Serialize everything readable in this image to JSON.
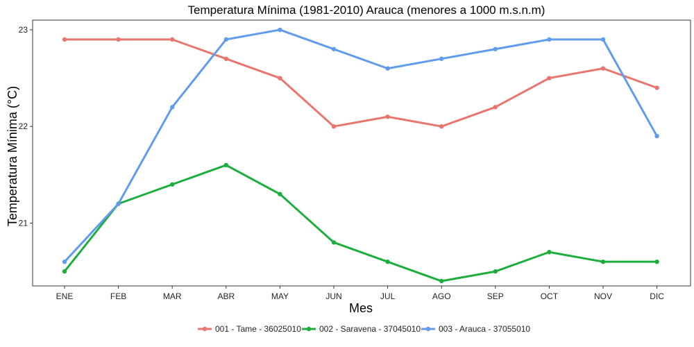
{
  "chart_data": {
    "type": "line",
    "title": "Temperatura Mínima (1981-2010) Arauca (menores a 1000 m.s.n.m)",
    "xlabel": "Mes",
    "ylabel": "Temperatura Mínima (°C)",
    "categories": [
      "ENE",
      "FEB",
      "MAR",
      "ABR",
      "MAY",
      "JUN",
      "JUL",
      "AGO",
      "SEP",
      "OCT",
      "NOV",
      "DIC"
    ],
    "ylim": [
      20.35,
      23.1
    ],
    "yticks": [
      21,
      22,
      23
    ],
    "grid": false,
    "legend_position": "bottom",
    "series": [
      {
        "name": "001 - Tame - 36025010",
        "color": "#E8766E",
        "values": [
          22.9,
          22.9,
          22.9,
          22.7,
          22.5,
          22.0,
          22.1,
          22.0,
          22.2,
          22.5,
          22.6,
          22.4
        ]
      },
      {
        "name": "002 - Saravena - 37045010",
        "color": "#1DAD3C",
        "values": [
          20.5,
          21.2,
          21.4,
          21.6,
          21.3,
          20.8,
          20.6,
          20.4,
          20.5,
          20.7,
          20.6,
          20.6
        ]
      },
      {
        "name": "003 - Arauca - 37055010",
        "color": "#619CEC",
        "values": [
          20.6,
          21.2,
          22.2,
          22.9,
          23.0,
          22.8,
          22.6,
          22.7,
          22.8,
          22.9,
          22.9,
          21.9
        ]
      }
    ]
  }
}
